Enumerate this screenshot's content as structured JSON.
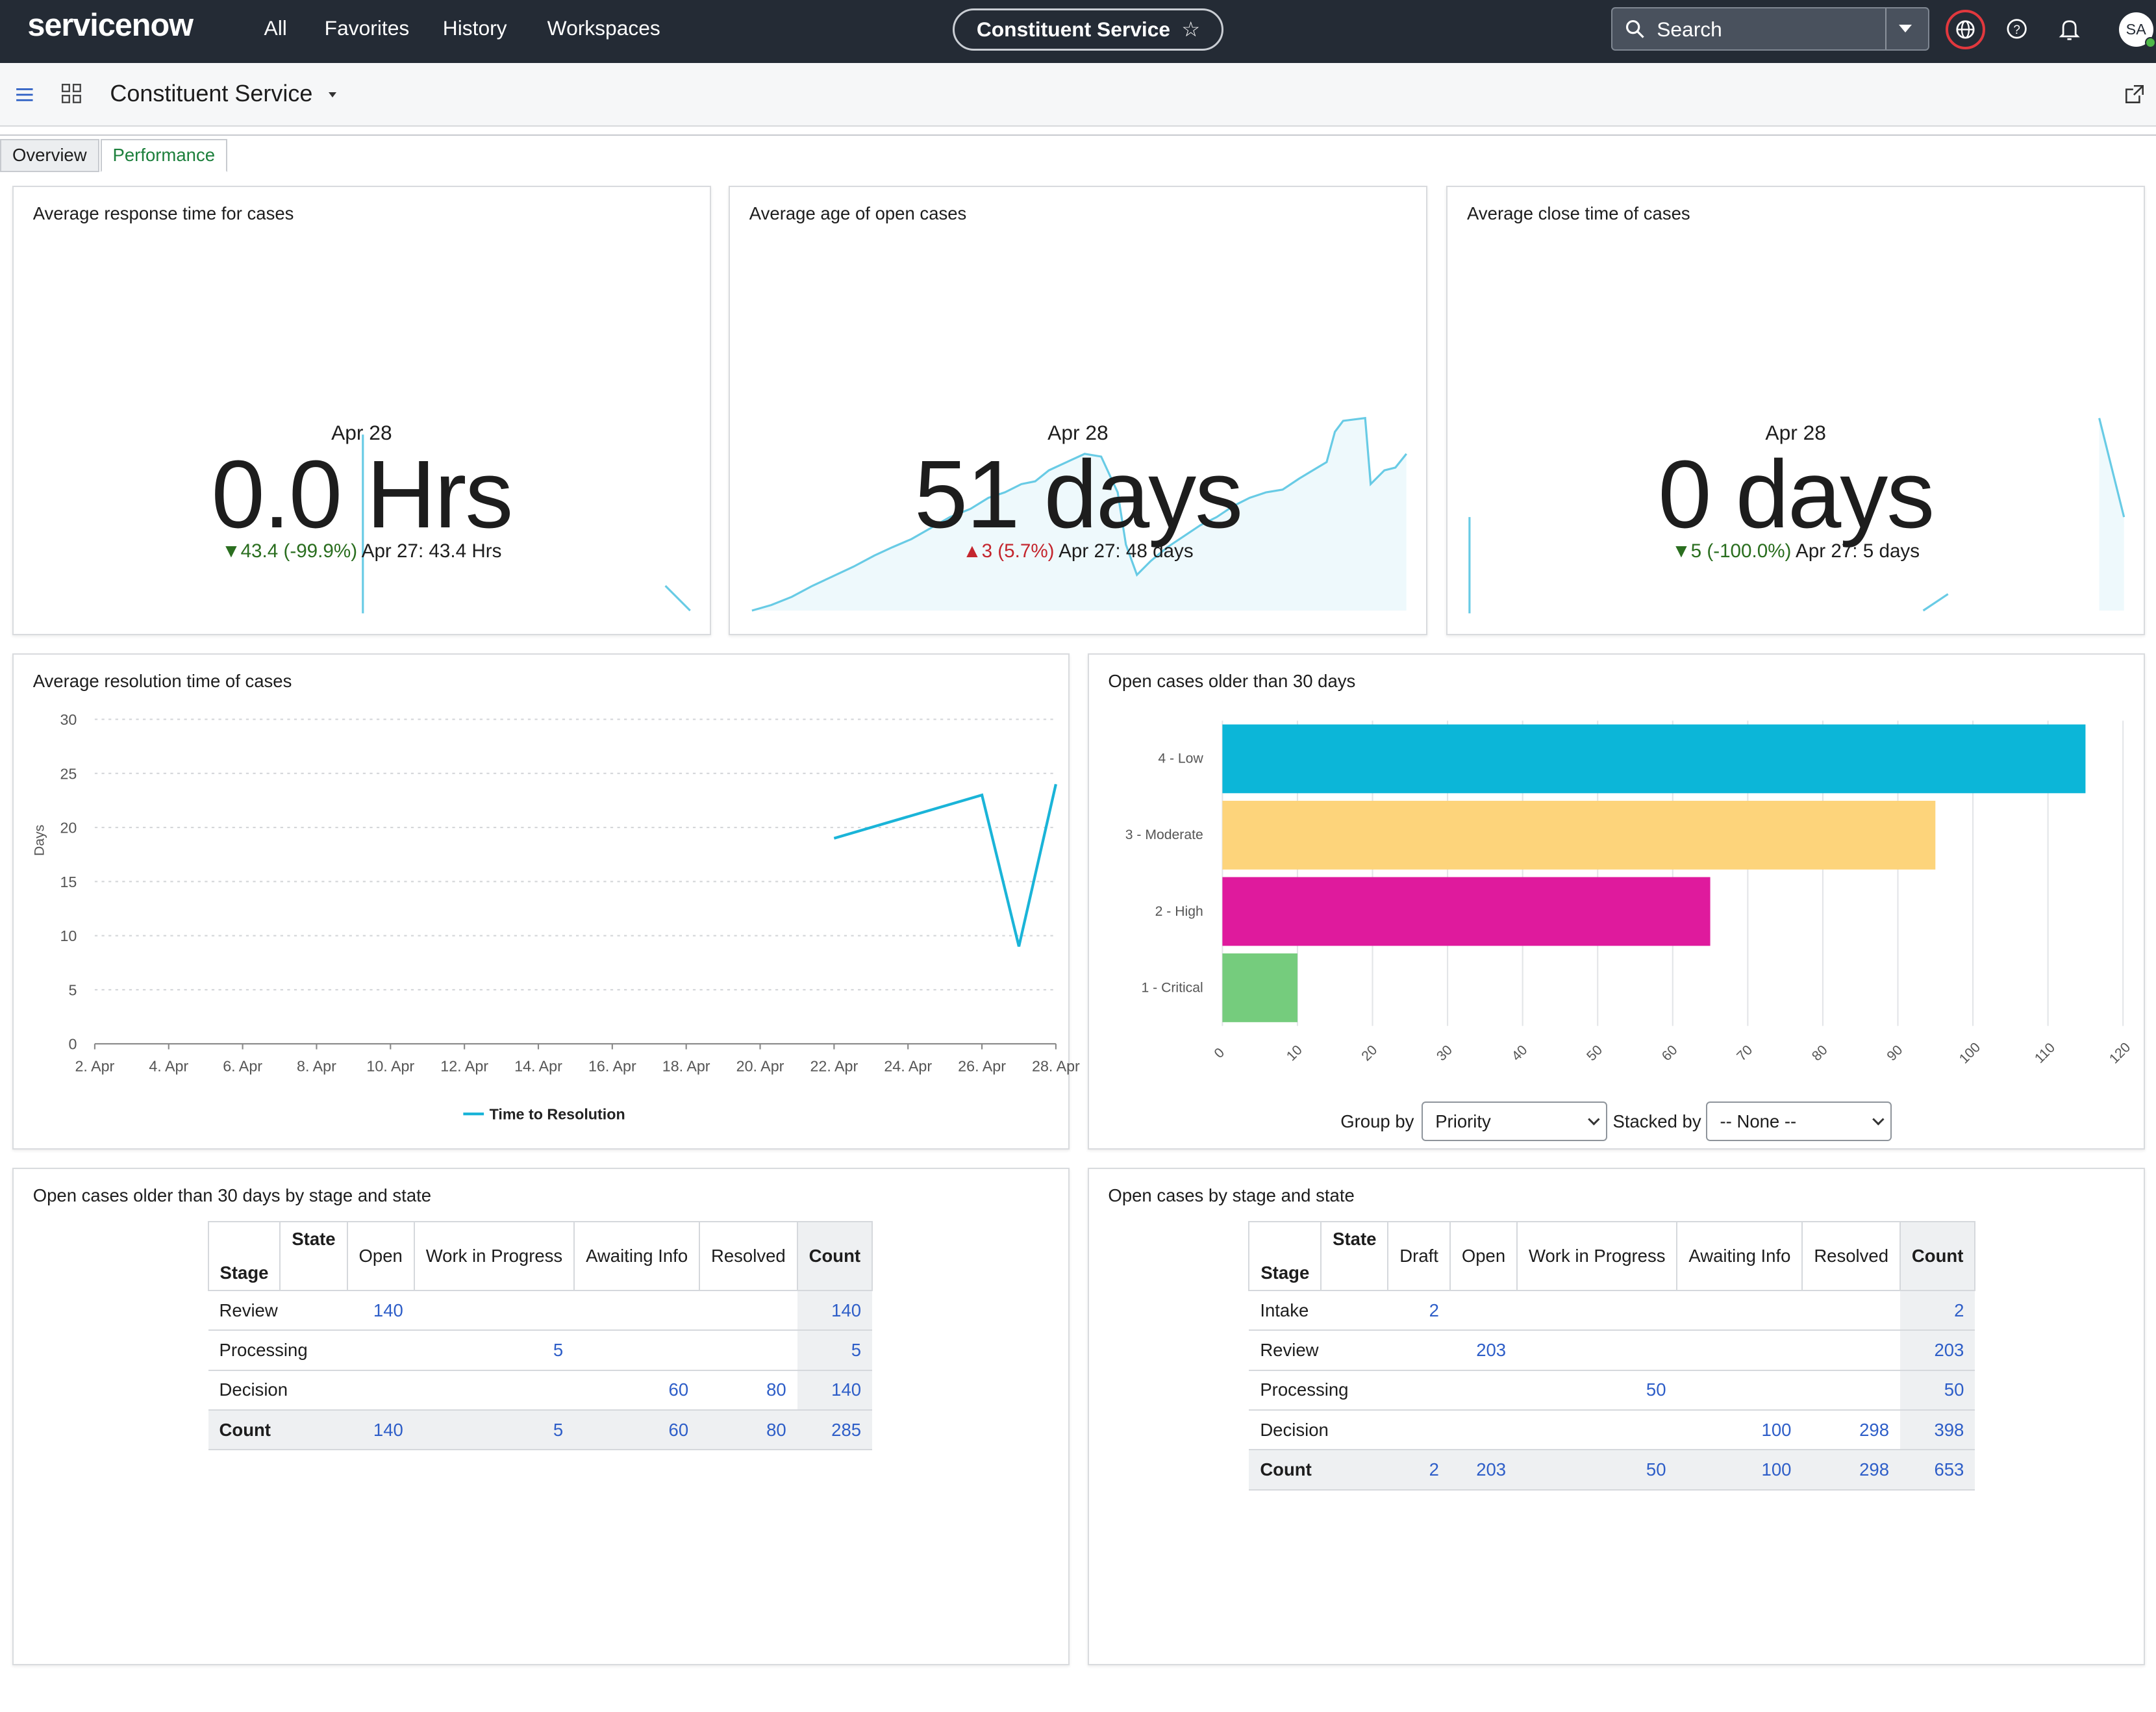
{
  "topbar": {
    "logo": "servicenow",
    "nav": [
      "All",
      "Favorites",
      "History",
      "Workspaces"
    ],
    "app_pill": "Constituent Service",
    "search_placeholder": "Search",
    "avatar": "SA",
    "globe_ring_color": "#e1383e"
  },
  "subbar": {
    "title": "Constituent Service"
  },
  "tabs": [
    "Overview",
    "Performance"
  ],
  "kpi": [
    {
      "title": "Average response time for cases",
      "date": "Apr 28",
      "value": "0.0 Hrs",
      "arrow": "▼",
      "change": "43.4 (-99.9%)",
      "prev": "Apr 27: 43.4 Hrs",
      "direction": "down"
    },
    {
      "title": "Average age of open cases",
      "date": "Apr 28",
      "value": "51 days",
      "arrow": "▲",
      "change": "3 (5.7%)",
      "prev": "Apr 27: 48 days",
      "direction": "up"
    },
    {
      "title": "Average close time of cases",
      "date": "Apr 28",
      "value": "0 days",
      "arrow": "▼",
      "change": "5 (-100.0%)",
      "prev": "Apr 27: 5 days",
      "direction": "down"
    }
  ],
  "line_card": {
    "title": "Average resolution time of cases"
  },
  "bar_card": {
    "title": "Open cases older than 30 days",
    "group_by_label": "Group by",
    "group_by_value": "Priority",
    "stacked_by_label": "Stacked by",
    "stacked_by_value": "-- None --"
  },
  "chart_data": [
    {
      "type": "line",
      "ylabel": "Days",
      "ylim": [
        0,
        30
      ],
      "yticks": [
        "0",
        "5",
        "10",
        "15",
        "20",
        "25",
        "30"
      ],
      "xticks": [
        "2. Apr",
        "4. Apr",
        "6. Apr",
        "8. Apr",
        "10. Apr",
        "12. Apr",
        "14. Apr",
        "16. Apr",
        "18. Apr",
        "20. Apr",
        "22. Apr",
        "24. Apr",
        "26. Apr",
        "28. Apr"
      ],
      "series": [
        {
          "name": "Time to Resolution",
          "color": "#1ab4d8",
          "points": [
            [
              "22. Apr",
              19
            ],
            [
              "26. Apr",
              23
            ],
            [
              "27. Apr",
              9
            ],
            [
              "28. Apr",
              24
            ]
          ]
        }
      ],
      "grid": true,
      "legend": "bottom-center"
    },
    {
      "type": "bar",
      "orientation": "horizontal",
      "categories": [
        "4 - Low",
        "3 - Moderate",
        "2 - High",
        "1 - Critical"
      ],
      "values": [
        115,
        95,
        65,
        10
      ],
      "colors": [
        "#0cb6d8",
        "#fdd47b",
        "#df1a9d",
        "#75cc7d"
      ],
      "xlim": [
        0,
        120
      ],
      "xticks": [
        "0",
        "10",
        "20",
        "30",
        "40",
        "50",
        "60",
        "70",
        "80",
        "90",
        "100",
        "110",
        "120"
      ],
      "grid": true
    }
  ],
  "table1": {
    "title": "Open cases older than 30 days by stage and state",
    "state_label": "State",
    "stage_label": "Stage",
    "columns": [
      "Open",
      "Work in Progress",
      "Awaiting Info",
      "Resolved",
      "Count"
    ],
    "rows": [
      {
        "stage": "Review",
        "cells": [
          "140",
          "",
          "",
          "",
          "140"
        ]
      },
      {
        "stage": "Processing",
        "cells": [
          "",
          "5",
          "",
          "",
          "5"
        ]
      },
      {
        "stage": "Decision",
        "cells": [
          "",
          "",
          "60",
          "80",
          "140"
        ]
      },
      {
        "stage": "Count",
        "cells": [
          "140",
          "5",
          "60",
          "80",
          "285"
        ]
      }
    ]
  },
  "table2": {
    "title": "Open cases by stage and state",
    "state_label": "State",
    "stage_label": "Stage",
    "columns": [
      "Draft",
      "Open",
      "Work in Progress",
      "Awaiting Info",
      "Resolved",
      "Count"
    ],
    "rows": [
      {
        "stage": "Intake",
        "cells": [
          "2",
          "",
          "",
          "",
          "",
          "2"
        ]
      },
      {
        "stage": "Review",
        "cells": [
          "",
          "203",
          "",
          "",
          "",
          "203"
        ]
      },
      {
        "stage": "Processing",
        "cells": [
          "",
          "",
          "50",
          "",
          "",
          "50"
        ]
      },
      {
        "stage": "Decision",
        "cells": [
          "",
          "",
          "",
          "100",
          "298",
          "398"
        ]
      },
      {
        "stage": "Count",
        "cells": [
          "2",
          "203",
          "50",
          "100",
          "298",
          "653"
        ]
      }
    ]
  }
}
